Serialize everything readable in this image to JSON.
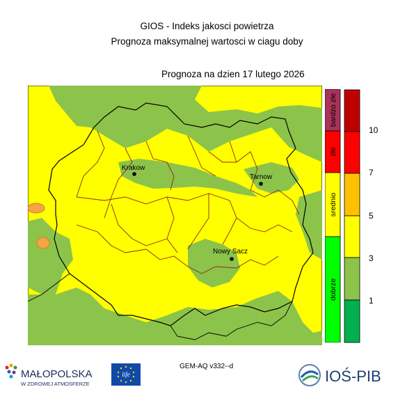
{
  "title_line1": "GIOS - Indeks jakosci powietrza",
  "title_line2": "Prognoza maksymalnej wartosci w ciagu doby",
  "forecast_date": "Prognoza na dzien  17 lutego 2026",
  "model_label": "GEM-AQ v332--d",
  "cities": [
    {
      "name": "Krakow"
    },
    {
      "name": "Tarnow"
    },
    {
      "name": "Nowy Sacz"
    }
  ],
  "legend_categories": [
    {
      "label": "bardzo złe",
      "color": "#a8325a"
    },
    {
      "label": "złe",
      "color": "#ff0000"
    },
    {
      "label": "srednio",
      "color": "#ffff00"
    },
    {
      "label": "dobrze",
      "color": "#00ff00"
    }
  ],
  "legend_scale": {
    "colors": [
      "#00b050",
      "#8cc34a",
      "#ffff00",
      "#ffc000",
      "#ff0000",
      "#c00000"
    ],
    "tick_labels": [
      "1",
      "3",
      "5",
      "7",
      "10"
    ]
  },
  "map_colors": {
    "good": "#8cc34a",
    "moderate": "#ffff00",
    "elevated": "#f5a442",
    "border_voivodeship": "#000000",
    "border_county": "#8b2a1a"
  },
  "logos": {
    "malopolska_name": "MAŁOPOLSKA",
    "malopolska_tagline": "W ZDROWEJ ATMOSFERZE",
    "eu_text": "life",
    "ios_text": "IOŚ-PIB"
  }
}
